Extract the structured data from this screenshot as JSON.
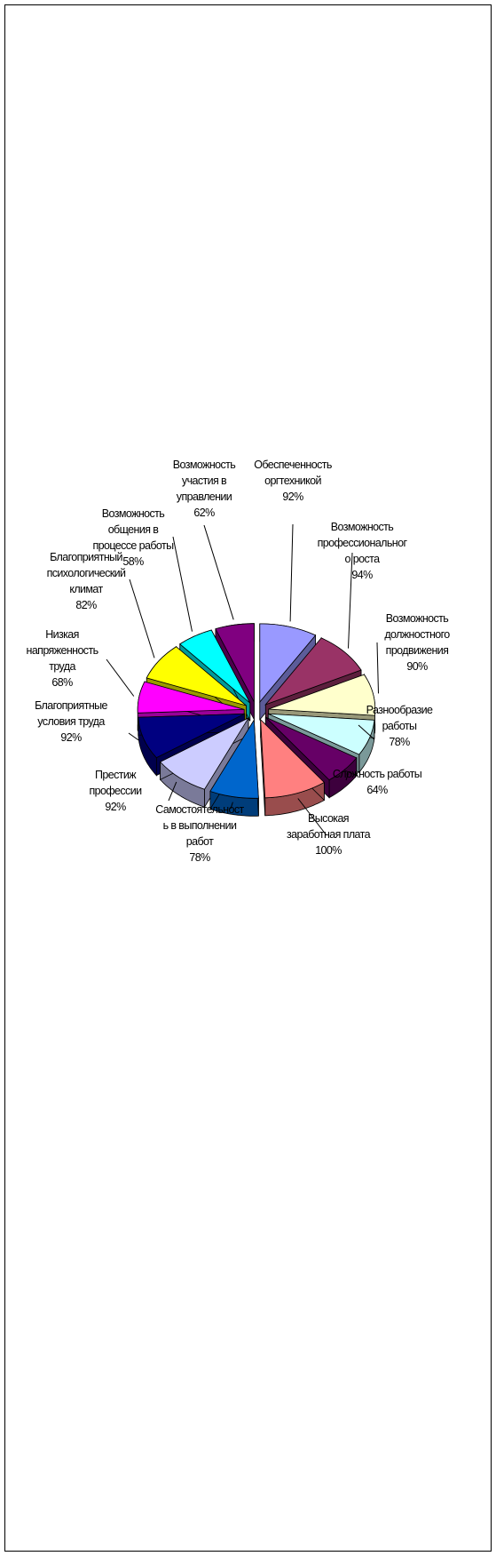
{
  "chart_data": {
    "type": "pie",
    "style": "3d-exploded",
    "title": "",
    "slices": [
      {
        "label": [
          "Обеспеченность",
          "оргтехникой"
        ],
        "value_label": "92%",
        "value": 92,
        "color": "#9999ff",
        "side": "#5c5c99"
      },
      {
        "label": [
          "Возможность",
          "профессиональног",
          "о роста"
        ],
        "value_label": "94%",
        "value": 94,
        "color": "#993366",
        "side": "#5c1f3d"
      },
      {
        "label": [
          "Возможность",
          "должностного",
          "продвижения"
        ],
        "value_label": "90%",
        "value": 90,
        "color": "#ffffcc",
        "side": "#99997a"
      },
      {
        "label": [
          "Разнообразие",
          "работы"
        ],
        "value_label": "78%",
        "value": 78,
        "color": "#ccffff",
        "side": "#7a9999"
      },
      {
        "label": [
          "Сложность работы"
        ],
        "value_label": "64%",
        "value": 64,
        "color": "#660066",
        "side": "#3d003d"
      },
      {
        "label": [
          "Высокая",
          "заработная плата"
        ],
        "value_label": "100%",
        "value": 100,
        "color": "#ff8080",
        "side": "#994d4d"
      },
      {
        "label": [
          "Самостоятельност",
          "ь в выполнении",
          "работ"
        ],
        "value_label": "78%",
        "value": 78,
        "color": "#0066cc",
        "side": "#003d7a"
      },
      {
        "label": [
          "Престиж",
          "профессии"
        ],
        "value_label": "92%",
        "value": 92,
        "color": "#ccccff",
        "side": "#7a7a99"
      },
      {
        "label": [
          "Благоприятные",
          "условия труда"
        ],
        "value_label": "92%",
        "value": 92,
        "color": "#000080",
        "side": "#00004d"
      },
      {
        "label": [
          "Низкая",
          "напряженность",
          "труда"
        ],
        "value_label": "68%",
        "value": 68,
        "color": "#ff00ff",
        "side": "#990099"
      },
      {
        "label": [
          "Благоприятный",
          "психологический",
          "климат"
        ],
        "value_label": "82%",
        "value": 82,
        "color": "#ffff00",
        "side": "#999900"
      },
      {
        "label": [
          "Возможность",
          "общения в",
          "процессе работы"
        ],
        "value_label": "58%",
        "value": 58,
        "color": "#00ffff",
        "side": "#009999"
      },
      {
        "label": [
          "Возможность",
          "участия в",
          "управлении"
        ],
        "value_label": "62%",
        "value": 62,
        "color": "#800080",
        "side": "#4d004d"
      }
    ]
  }
}
